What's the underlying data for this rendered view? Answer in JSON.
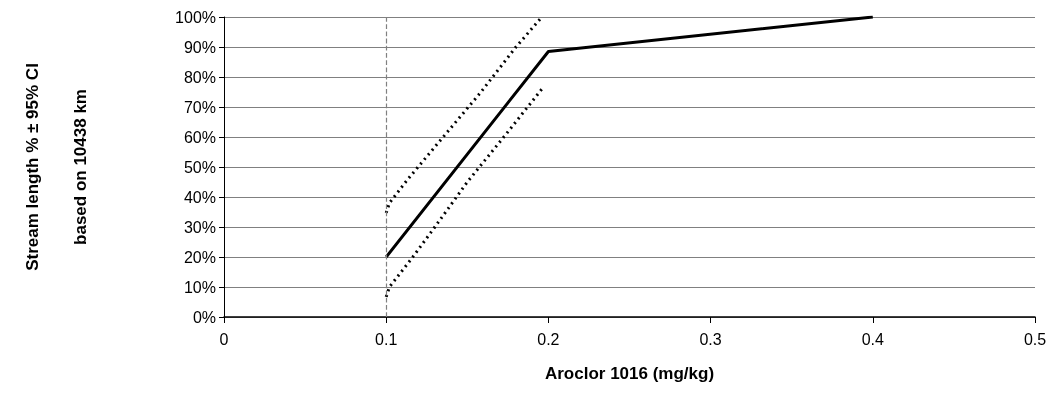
{
  "chart_data": {
    "type": "line",
    "xlabel": "Aroclor 1016 (mg/kg)",
    "ylabel": "Stream length % ± 95% CI\nbased on 10438 km",
    "xlim": [
      0,
      0.5
    ],
    "xticks": [
      0,
      0.1,
      0.2,
      0.3,
      0.4,
      0.5
    ],
    "ylim": [
      0,
      100
    ],
    "yticks": [
      {
        "value": 0,
        "label": "0%"
      },
      {
        "value": 10,
        "label": "10%"
      },
      {
        "value": 20,
        "label": "20%"
      },
      {
        "value": 30,
        "label": "30%"
      },
      {
        "value": 40,
        "label": "40%"
      },
      {
        "value": 50,
        "label": "50%"
      },
      {
        "value": 60,
        "label": "60%"
      },
      {
        "value": 70,
        "label": "70%"
      },
      {
        "value": 80,
        "label": "80%"
      },
      {
        "value": 90,
        "label": "90%"
      },
      {
        "value": 100,
        "label": "100%"
      }
    ],
    "grid": "y",
    "marker": "none",
    "ref_lines": [
      {
        "axis": "x",
        "value": 0.1,
        "color": "#808080",
        "line_style": "dashed"
      }
    ],
    "series": [
      {
        "color": "#000000",
        "line_style": "solid",
        "x": [
          0.1,
          0.2,
          0.4
        ],
        "values": [
          20,
          88.5,
          100
        ]
      },
      {
        "color": "#000000",
        "line_style": "dotted",
        "x": [
          0.1,
          0.102,
          0.113,
          0.13,
          0.158,
          0.18,
          0.196
        ],
        "values": [
          34.7,
          38,
          45.7,
          56.7,
          74.7,
          90,
          100
        ]
      },
      {
        "color": "#000000",
        "line_style": "dotted",
        "x": [
          0.1,
          0.102,
          0.116,
          0.13,
          0.15,
          0.174,
          0.196
        ],
        "values": [
          6.7,
          10,
          19.7,
          30,
          45,
          61,
          76
        ]
      }
    ]
  }
}
